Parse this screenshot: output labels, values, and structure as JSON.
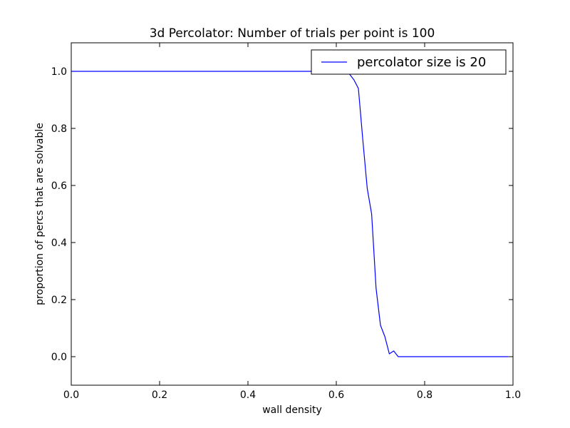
{
  "chart_data": {
    "type": "line",
    "title": "3d Percolator: Number of trials per point is 100",
    "xlabel": "wall density",
    "ylabel": "proportion of percs that are solvable",
    "xlim": [
      0.0,
      1.0
    ],
    "ylim": [
      -0.1,
      1.1
    ],
    "xticks": [
      0.0,
      0.2,
      0.4,
      0.6,
      0.8,
      1.0
    ],
    "xtick_labels": [
      "0.0",
      "0.2",
      "0.4",
      "0.6",
      "0.8",
      "1.0"
    ],
    "yticks": [
      0.0,
      0.2,
      0.4,
      0.6,
      0.8,
      1.0
    ],
    "ytick_labels": [
      "0.0",
      "0.2",
      "0.4",
      "0.6",
      "0.8",
      "1.0"
    ],
    "grid": false,
    "legend_position": "top-right",
    "series": [
      {
        "name": "percolator size is 20",
        "color": "#0000ff",
        "x": [
          0.0,
          0.01,
          0.02,
          0.03,
          0.04,
          0.05,
          0.06,
          0.07,
          0.08,
          0.09,
          0.1,
          0.11,
          0.12,
          0.13,
          0.14,
          0.15,
          0.16,
          0.17,
          0.18,
          0.19,
          0.2,
          0.21,
          0.22,
          0.23,
          0.24,
          0.25,
          0.26,
          0.27,
          0.28,
          0.29,
          0.3,
          0.31,
          0.32,
          0.33,
          0.34,
          0.35,
          0.36,
          0.37,
          0.38,
          0.39,
          0.4,
          0.41,
          0.42,
          0.43,
          0.44,
          0.45,
          0.46,
          0.47,
          0.48,
          0.49,
          0.5,
          0.51,
          0.52,
          0.53,
          0.54,
          0.55,
          0.56,
          0.57,
          0.58,
          0.59,
          0.6,
          0.61,
          0.62,
          0.63,
          0.64,
          0.65,
          0.66,
          0.67,
          0.68,
          0.69,
          0.7,
          0.71,
          0.72,
          0.73,
          0.74,
          0.75,
          0.76,
          0.77,
          0.78,
          0.79,
          0.8,
          0.81,
          0.82,
          0.83,
          0.84,
          0.85,
          0.86,
          0.87,
          0.88,
          0.89,
          0.9,
          0.91,
          0.92,
          0.93,
          0.94,
          0.95,
          0.96,
          0.97,
          0.98,
          0.99
        ],
        "y": [
          1.0,
          1.0,
          1.0,
          1.0,
          1.0,
          1.0,
          1.0,
          1.0,
          1.0,
          1.0,
          1.0,
          1.0,
          1.0,
          1.0,
          1.0,
          1.0,
          1.0,
          1.0,
          1.0,
          1.0,
          1.0,
          1.0,
          1.0,
          1.0,
          1.0,
          1.0,
          1.0,
          1.0,
          1.0,
          1.0,
          1.0,
          1.0,
          1.0,
          1.0,
          1.0,
          1.0,
          1.0,
          1.0,
          1.0,
          1.0,
          1.0,
          1.0,
          1.0,
          1.0,
          1.0,
          1.0,
          1.0,
          1.0,
          1.0,
          1.0,
          1.0,
          1.0,
          1.0,
          1.0,
          1.0,
          1.0,
          1.0,
          1.0,
          1.0,
          1.0,
          1.0,
          1.0,
          1.0,
          0.99,
          0.97,
          0.94,
          0.76,
          0.59,
          0.5,
          0.24,
          0.11,
          0.07,
          0.01,
          0.02,
          0.0,
          0.0,
          0.0,
          0.0,
          0.0,
          0.0,
          0.0,
          0.0,
          0.0,
          0.0,
          0.0,
          0.0,
          0.0,
          0.0,
          0.0,
          0.0,
          0.0,
          0.0,
          0.0,
          0.0,
          0.0,
          0.0,
          0.0,
          0.0,
          0.0,
          0.0
        ]
      }
    ]
  }
}
